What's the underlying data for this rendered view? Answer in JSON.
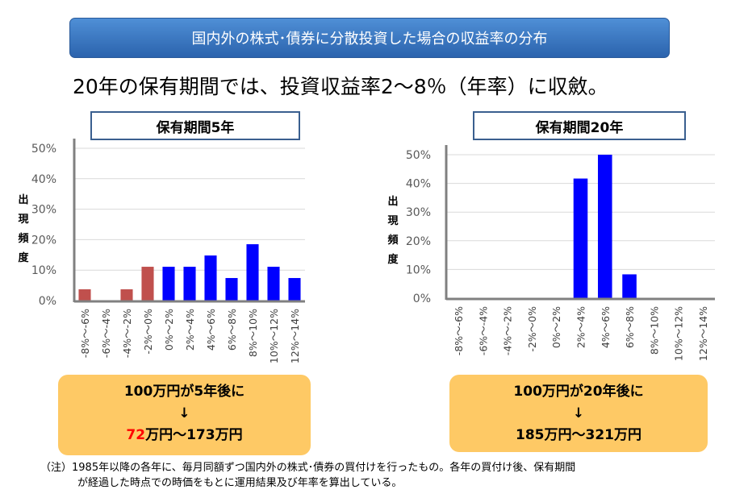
{
  "banner": "国内外の株式･債券に分散投資した場合の収益率の分布",
  "headline": "20年の保有期間では、投資収益率2～8％（年率）に収斂。",
  "y_axis_label": "出現頻度",
  "colors": {
    "negative": "#c0504d",
    "positive": "#0000ff",
    "banner": "#3a76c4",
    "box": "#fec965",
    "highlight": "#ff0000"
  },
  "chart_data": [
    {
      "type": "bar",
      "title": "保有期間5年",
      "ylabel": "出現頻度",
      "ylim": [
        0,
        50
      ],
      "yticks": [
        "0%",
        "10%",
        "20%",
        "30%",
        "40%",
        "50%"
      ],
      "grid": true,
      "categories": [
        "-8%～-6%",
        "-6%～-4%",
        "-4%～-2%",
        "-2%～0%",
        "0%～2%",
        "2%～4%",
        "4%～6%",
        "6%～8%",
        "8%～10%",
        "10%～12%",
        "12%～14%"
      ],
      "values": [
        3.7,
        0,
        3.7,
        11.1,
        11.1,
        11.1,
        14.8,
        7.4,
        18.5,
        11.1,
        7.4
      ]
    },
    {
      "type": "bar",
      "title": "保有期間20年",
      "ylabel": "出現頻度",
      "ylim": [
        0,
        50
      ],
      "yticks": [
        "0%",
        "10%",
        "20%",
        "30%",
        "40%",
        "50%"
      ],
      "grid": true,
      "categories": [
        "-8%～-6%",
        "-6%～-4%",
        "-4%～-2%",
        "-2%～0%",
        "0%～2%",
        "2%～4%",
        "4%～6%",
        "6%～8%",
        "8%～10%",
        "10%～12%",
        "12%～14%"
      ],
      "values": [
        0,
        0,
        0,
        0,
        0,
        41.7,
        50,
        8.3,
        0,
        0,
        0
      ]
    }
  ],
  "box5": {
    "line1": "100万円が5年後に",
    "arrow": "↓",
    "low": "72",
    "rest": "万円～173万円"
  },
  "box20": {
    "line1": "100万円が20年後に",
    "arrow": "↓",
    "line3": "185万円～321万円"
  },
  "note": {
    "line1": "（注）1985年以降の各年に、毎月同額ずつ国内外の株式･債券の買付けを行ったもの。各年の買付け後、保有期間",
    "line2": "が経過した時点での時価をもとに運用結果及び年率を算出している。"
  }
}
